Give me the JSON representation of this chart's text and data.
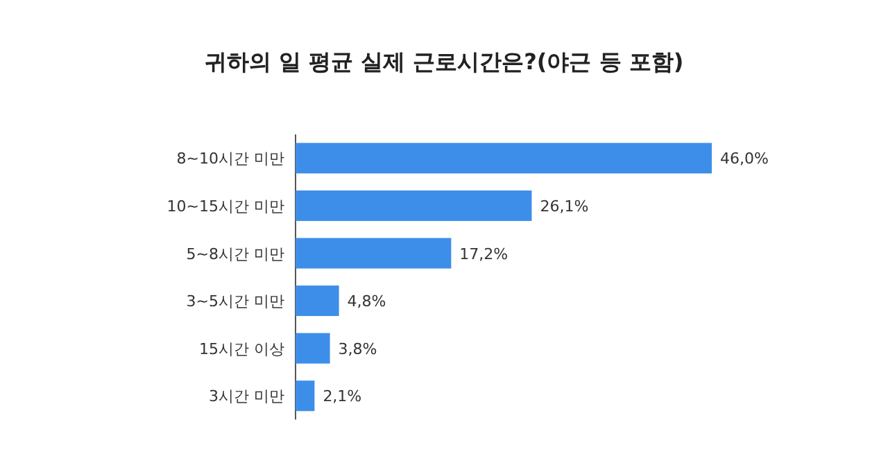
{
  "chart_data": {
    "type": "bar",
    "orientation": "horizontal",
    "title": "귀하의 일 평균 실제 근로시간은?(야근 등 포함)",
    "categories": [
      "8~10시간 미만",
      "10~15시간 미만",
      "5~8시간 미만",
      "3~5시간 미만",
      "15시간 이상",
      "3시간 미만"
    ],
    "values": [
      46.0,
      26.1,
      17.2,
      4.8,
      3.8,
      2.1
    ],
    "value_labels": [
      "46,0%",
      "26,1%",
      "17,2%",
      "4,8%",
      "3,8%",
      "2,1%"
    ],
    "color": "#3d8ee8",
    "tick_labels": "y"
  }
}
